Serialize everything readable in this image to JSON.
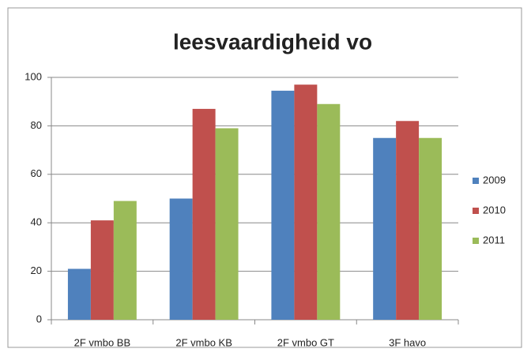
{
  "chart_data": {
    "type": "bar",
    "title": "leesvaardigheid vo",
    "categories": [
      "2F vmbo BB",
      "2F vmbo KB",
      "2F vmbo GT",
      "3F havo"
    ],
    "series": [
      {
        "name": "2009",
        "color": "#4f81bd",
        "values": [
          21,
          50,
          94.5,
          75
        ]
      },
      {
        "name": "2010",
        "color": "#c0504d",
        "values": [
          41,
          87,
          97,
          82
        ]
      },
      {
        "name": "2011",
        "color": "#9bbb59",
        "values": [
          49,
          79,
          89,
          75
        ]
      }
    ],
    "ylim": [
      0,
      100
    ],
    "yticks": [
      0,
      20,
      40,
      60,
      80,
      100
    ],
    "grid": true,
    "legend": "right"
  }
}
